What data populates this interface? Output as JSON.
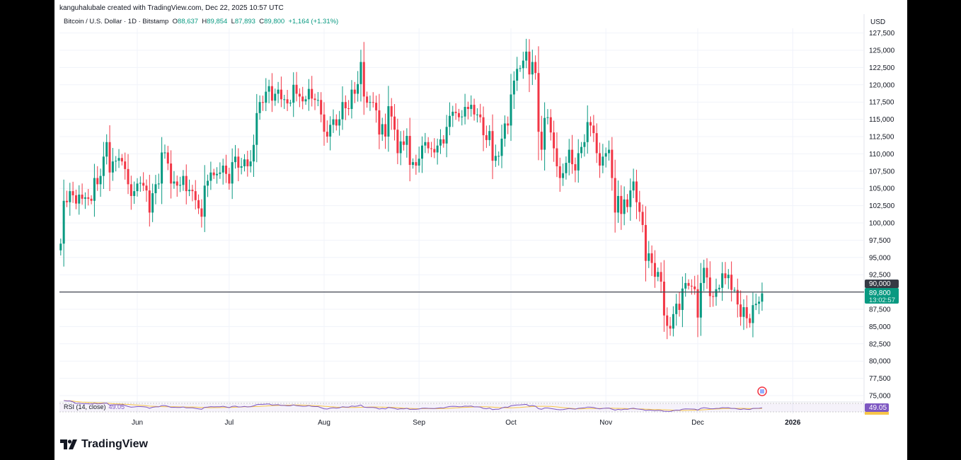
{
  "credit": "kanguhalubale created with TradingView.com, Dec 22, 2025 10:57 UTC",
  "legend": {
    "symbol": "Bitcoin / U.S. Dollar · 1D · Bitstamp",
    "open_label": "O",
    "open": "88,637",
    "high_label": "H",
    "high": "89,854",
    "low_label": "L",
    "low": "87,893",
    "close_label": "C",
    "close": "89,800",
    "change": "+1,164 (+1.31%)"
  },
  "brand": "TradingView",
  "rsi": {
    "label": "RSI (14, close)",
    "value": "49.05",
    "line_color": "#7e57c2",
    "ma_color": "#f7c548"
  },
  "chart_data": {
    "type": "candlestick",
    "currency": "USD",
    "y_ticks": [
      "75,000",
      "77,500",
      "80,000",
      "82,500",
      "85,000",
      "87,500",
      "90,000",
      "92,500",
      "95,000",
      "97,500",
      "100,000",
      "102,500",
      "105,000",
      "107,500",
      "110,000",
      "112,500",
      "115,000",
      "117,500",
      "120,000",
      "122,500",
      "125,000",
      "127,500"
    ],
    "ylim": [
      75000,
      127500
    ],
    "x_ticks": [
      "Jun",
      "Jul",
      "Aug",
      "Sep",
      "Oct",
      "Nov",
      "Dec",
      "2026"
    ],
    "horizontal_line": {
      "value": 90000,
      "label": "90,000"
    },
    "last_price": {
      "value": 89800,
      "label": "89,800",
      "countdown": "13:02:57"
    },
    "colors": {
      "up": "#089981",
      "down": "#f23645"
    },
    "grid": true,
    "closes_by_month": [
      {
        "month": "2025-05",
        "first_day": 7,
        "closes": [
          97000,
          103200,
          103000,
          104600,
          104000,
          102800,
          104100,
          103500,
          103700,
          103500,
          103200,
          106500,
          105600,
          106800,
          109600,
          111700,
          107300,
          108900,
          109000,
          109400,
          108900,
          107800,
          105600,
          103900,
          104600
        ]
      },
      {
        "month": "2025-06",
        "first_day": 1,
        "closes": [
          105700,
          105800,
          105400,
          104700,
          101500,
          104300,
          105600,
          105700,
          110200,
          110200,
          108600,
          105700,
          106000,
          105400,
          105500,
          106800,
          104600,
          104800,
          104600,
          103300,
          102100,
          100900,
          105400,
          106100,
          107300,
          106900,
          107100,
          107300,
          108300,
          107100
        ]
      },
      {
        "month": "2025-07",
        "first_day": 1,
        "closes": [
          105700,
          108800,
          109600,
          108000,
          108200,
          109200,
          108200,
          108900,
          111300,
          115900,
          117500,
          117400,
          119000,
          119800,
          117700,
          118700,
          119300,
          117900,
          117900,
          117300,
          117400,
          120000,
          118700,
          118300,
          117600,
          117900,
          119400,
          118000,
          117800,
          117800,
          115700
        ]
      },
      {
        "month": "2025-08",
        "first_day": 1,
        "closes": [
          113200,
          112500,
          114200,
          115000,
          114100,
          115000,
          117500,
          116600,
          116500,
          119300,
          118700,
          120100,
          123300,
          118300,
          117400,
          117500,
          117400,
          116300,
          112800,
          114300,
          112500,
          116900,
          115400,
          113500,
          110100,
          111800,
          111300,
          112600,
          108400,
          108800,
          108300
        ]
      },
      {
        "month": "2025-09",
        "first_day": 1,
        "closes": [
          109300,
          111200,
          111700,
          110800,
          110700,
          110200,
          111200,
          112100,
          111500,
          113900,
          115500,
          116100,
          115900,
          115300,
          115400,
          116800,
          116500,
          117100,
          115700,
          115700,
          115300,
          112700,
          112000,
          113300,
          109000,
          109700,
          109700,
          112200,
          114400,
          114100
        ]
      },
      {
        "month": "2025-10",
        "first_day": 1,
        "closes": [
          118600,
          120600,
          122300,
          122400,
          123500,
          124800,
          121500,
          123300,
          121700,
          113200,
          110600,
          115200,
          115300,
          113100,
          110800,
          108200,
          106500,
          107200,
          108700,
          110600,
          108500,
          107600,
          110100,
          111000,
          111700,
          114600,
          114100,
          113000,
          110100,
          108300,
          109600
        ]
      },
      {
        "month": "2025-11",
        "first_day": 1,
        "closes": [
          110100,
          110600,
          106500,
          101500,
          103900,
          101300,
          103400,
          102300,
          104700,
          106000,
          103000,
          101600,
          99700,
          94500,
          95600,
          94200,
          92200,
          92900,
          91500,
          86600,
          85100,
          84700,
          86800,
          88300,
          87400,
          90500,
          91300,
          90900,
          90800,
          90400
        ]
      },
      {
        "month": "2025-12",
        "first_day": 1,
        "closes": [
          86300,
          91300,
          93500,
          92100,
          89400,
          89300,
          90400,
          90600,
          92700,
          92000,
          92500,
          90300,
          90300,
          88200,
          86400,
          87800,
          86200,
          85500,
          88100,
          88300,
          88600,
          89800
        ]
      }
    ]
  }
}
